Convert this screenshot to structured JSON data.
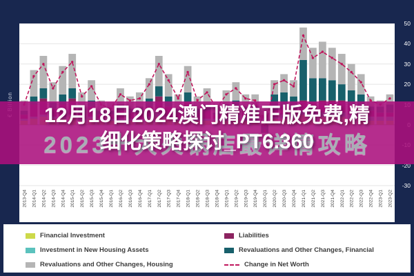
{
  "overlay": {
    "line1": "12月18日2024澳门精准正版免费,精",
    "line2": "细化策略探讨_PT6.360",
    "color": "#ab107d"
  },
  "watermark": {
    "text": "2023十大火锅店最详情攻略"
  },
  "legend": {
    "items": [
      {
        "label": "Financial Investment",
        "color": "#cdd94a",
        "swatch": "rect"
      },
      {
        "label": "Investment in New Housing Assets",
        "color": "#5bc2bd",
        "swatch": "rect"
      },
      {
        "label": "Revaluations and Other Changes, Housing",
        "color": "#b5b5b5",
        "swatch": "rect"
      },
      {
        "label": "Liabilities",
        "color": "#8c2360",
        "swatch": "rect"
      },
      {
        "label": "Revaluations and Other Changes, Financial",
        "color": "#18606b",
        "swatch": "rect"
      },
      {
        "label": "Change in Net Worth",
        "color": "#c0175d",
        "swatch": "dashed-line"
      }
    ]
  },
  "chart_data": {
    "type": "bar",
    "subtype": "stacked-bars-with-dashed-line",
    "ylabel": "€ Billion",
    "ylim": [
      -30,
      50
    ],
    "yticks": [
      50,
      40,
      30,
      20,
      10,
      0,
      -10,
      -20,
      -30
    ],
    "grid": true,
    "legend_position": "bottom",
    "categories": [
      "2013-Q4",
      "2014-Q1",
      "2014-Q2",
      "2014-Q3",
      "2014-Q4",
      "2015-Q1",
      "2015-Q2",
      "2015-Q3",
      "2015-Q4",
      "2016-Q1",
      "2016-Q2",
      "2016-Q3",
      "2016-Q4",
      "2017-Q1",
      "2017-Q2",
      "2017-Q3",
      "2017-Q4",
      "2018-Q1",
      "2018-Q2",
      "2018-Q3",
      "2018-Q4",
      "2019-Q1",
      "2019-Q2",
      "2019-Q3",
      "2019-Q4",
      "2020-Q1",
      "2020-Q2",
      "2020-Q3",
      "2020-Q4",
      "2021-Q1",
      "2021-Q2",
      "2021-Q3",
      "2021-Q4",
      "2022-Q1",
      "2022-Q2",
      "2022-Q3",
      "2022-Q4",
      "2023-Q1",
      "2023-Q2"
    ],
    "series": [
      {
        "name": "Financial Investment",
        "type": "bar",
        "color": "#cdd94a",
        "values": [
          2,
          3,
          4,
          3,
          3,
          4,
          2,
          3,
          2,
          2,
          2,
          2,
          2,
          3,
          4,
          3,
          2,
          3,
          2,
          2,
          2,
          2,
          3,
          2,
          2,
          2,
          3,
          3,
          3,
          5,
          4,
          4,
          4,
          4,
          3,
          3,
          2,
          2,
          2
        ]
      },
      {
        "name": "Investment in New Housing Assets",
        "type": "bar",
        "color": "#5bc2bd",
        "values": [
          1,
          1,
          1,
          1,
          1,
          1,
          1,
          1,
          1,
          1,
          1,
          1,
          1,
          1,
          2,
          1,
          1,
          2,
          1,
          1,
          1,
          2,
          2,
          2,
          2,
          1,
          1,
          2,
          2,
          2,
          2,
          2,
          2,
          2,
          2,
          2,
          2,
          2,
          2
        ]
      },
      {
        "name": "Liabilities",
        "type": "bar",
        "color": "#8c2360",
        "values": [
          2,
          6,
          8,
          4,
          6,
          8,
          3,
          5,
          2,
          2,
          4,
          3,
          3,
          5,
          8,
          5,
          3,
          6,
          3,
          4,
          2,
          3,
          4,
          3,
          3,
          2,
          3,
          4,
          3,
          5,
          5,
          6,
          6,
          6,
          5,
          4,
          3,
          2,
          2
        ]
      },
      {
        "name": "Revaluations and Other Changes, Financial",
        "type": "bar",
        "color": "#18606b",
        "values": [
          2,
          4,
          5,
          3,
          5,
          5,
          2,
          3,
          2,
          2,
          3,
          2,
          3,
          4,
          5,
          5,
          2,
          5,
          2,
          3,
          1,
          3,
          3,
          2,
          2,
          -4,
          8,
          7,
          6,
          20,
          12,
          11,
          10,
          8,
          7,
          6,
          2,
          3,
          4
        ]
      },
      {
        "name": "Revaluations and Other Changes, Housing",
        "type": "bar",
        "color": "#b5b5b5",
        "values": [
          5,
          13,
          16,
          10,
          14,
          17,
          8,
          10,
          5,
          4,
          8,
          6,
          7,
          10,
          15,
          11,
          7,
          13,
          6,
          8,
          4,
          7,
          9,
          6,
          6,
          2,
          7,
          9,
          8,
          16,
          15,
          18,
          16,
          15,
          13,
          10,
          5,
          3,
          5
        ]
      },
      {
        "name": "Change in Net Worth",
        "type": "line",
        "dashed": true,
        "color": "#c0175d",
        "values": [
          10,
          24,
          30,
          18,
          26,
          31,
          14,
          19,
          10,
          8,
          15,
          12,
          13,
          20,
          30,
          22,
          13,
          26,
          12,
          16,
          8,
          15,
          18,
          13,
          12,
          -3,
          20,
          22,
          19,
          44,
          33,
          36,
          33,
          30,
          26,
          21,
          12,
          10,
          13
        ]
      }
    ]
  }
}
